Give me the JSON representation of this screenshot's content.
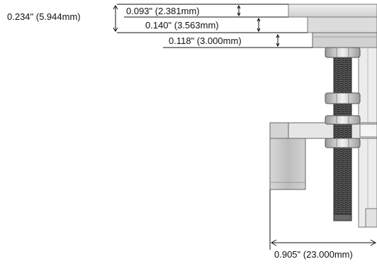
{
  "dimensions": {
    "total_stack": "0.234\" (5.944mm)",
    "top_plate": "0.093\" (2.381mm)",
    "second_layer": "0.140\" (3.563mm)",
    "third_layer": "0.118\" (3.000mm)",
    "offset_width": "0.905\" (23.000mm)"
  },
  "colors": {
    "line": "#111111",
    "metal_light": "#e4e4e4",
    "metal_mid": "#c9c9c9",
    "metal_dark": "#8a8a8a",
    "thread": "#3a3a3a"
  }
}
